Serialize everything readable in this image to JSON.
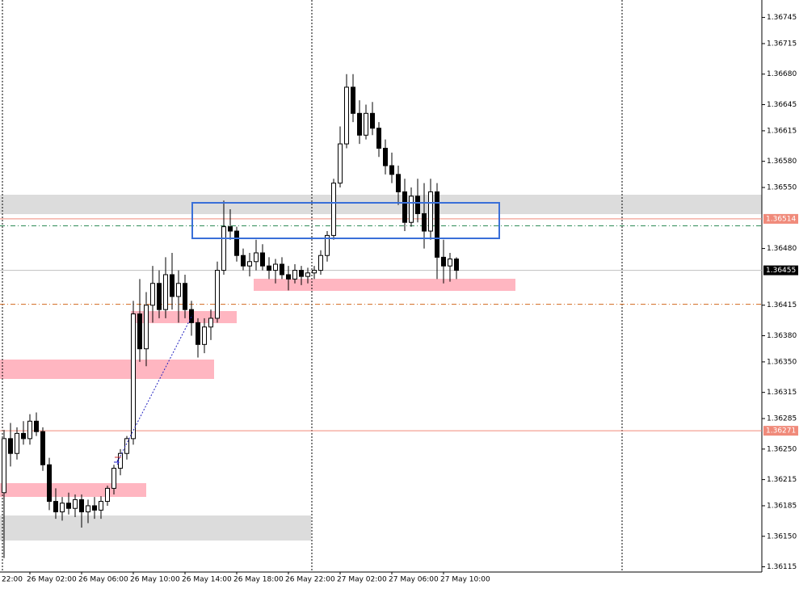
{
  "chart_data": {
    "type": "candlestick",
    "ylim": [
      1.36109,
      1.36765
    ],
    "yticks": [
      1.36745,
      1.36715,
      {
        "value": 1.3668,
        "label": "1.36680"
      },
      1.36645,
      1.36615,
      {
        "value": 1.3658,
        "label": "1.36580"
      },
      {
        "value": 1.3655,
        "label": "1.36550"
      },
      {
        "value": 1.3648,
        "label": "1.36480"
      },
      1.36415,
      {
        "value": 1.3638,
        "label": "1.36380"
      },
      {
        "value": 1.3635,
        "label": "1.36350"
      },
      1.36315,
      1.36285,
      {
        "value": 1.3625,
        "label": "1.36250"
      },
      1.36215,
      1.36185,
      {
        "value": 1.3615,
        "label": "1.36150"
      },
      1.36115
    ],
    "x_cut_label": "22:00",
    "categories": [
      null,
      null,
      null,
      null,
      "26 May 02:00",
      null,
      null,
      null,
      null,
      null,
      null,
      null,
      "26 May 06:00",
      null,
      null,
      null,
      null,
      null,
      null,
      null,
      "26 May 10:00",
      null,
      null,
      null,
      null,
      null,
      null,
      null,
      "26 May 14:00",
      null,
      null,
      null,
      null,
      null,
      null,
      null,
      "26 May 18:00",
      null,
      null,
      null,
      null,
      null,
      null,
      null,
      "26 May 22:00",
      null,
      null,
      null,
      null,
      null,
      null,
      null,
      "27 May 02:00",
      null,
      null,
      null,
      null,
      null,
      null,
      null,
      "27 May 06:00",
      null,
      null,
      null,
      null,
      null,
      null,
      null,
      "27 May 10:00",
      null,
      null
    ],
    "ohlc": [
      [
        1.362,
        1.36272,
        1.36125,
        1.36262
      ],
      [
        1.36262,
        1.3628,
        1.3623,
        1.36245
      ],
      [
        1.36245,
        1.36275,
        1.36238,
        1.36268
      ],
      [
        1.36268,
        1.36282,
        1.36255,
        1.36262
      ],
      [
        1.36262,
        1.3629,
        1.36255,
        1.36282
      ],
      [
        1.36282,
        1.36292,
        1.36265,
        1.3627
      ],
      [
        1.3627,
        1.36275,
        1.36225,
        1.36232
      ],
      [
        1.36232,
        1.3624,
        1.3618,
        1.3619
      ],
      [
        1.3619,
        1.36205,
        1.3617,
        1.36178
      ],
      [
        1.36178,
        1.36195,
        1.36168,
        1.36188
      ],
      [
        1.36188,
        1.362,
        1.36175,
        1.36182
      ],
      [
        1.36182,
        1.36198,
        1.36172,
        1.36192
      ],
      [
        1.36192,
        1.36198,
        1.3616,
        1.36178
      ],
      [
        1.36178,
        1.36192,
        1.36165,
        1.36185
      ],
      [
        1.36185,
        1.36195,
        1.3617,
        1.3618
      ],
      [
        1.3618,
        1.36196,
        1.3617,
        1.3619
      ],
      [
        1.3619,
        1.36208,
        1.36185,
        1.36205
      ],
      [
        1.36205,
        1.36232,
        1.36198,
        1.36228
      ],
      [
        1.36228,
        1.3625,
        1.3622,
        1.36245
      ],
      [
        1.36245,
        1.36265,
        1.36238,
        1.36262
      ],
      [
        1.36262,
        1.3642,
        1.36255,
        1.36405
      ],
      [
        1.36405,
        1.36445,
        1.3635,
        1.36365
      ],
      [
        1.36365,
        1.3643,
        1.36345,
        1.36415
      ],
      [
        1.36415,
        1.3646,
        1.36395,
        1.3644
      ],
      [
        1.3644,
        1.36455,
        1.364,
        1.3641
      ],
      [
        1.3641,
        1.3647,
        1.364,
        1.3645
      ],
      [
        1.3645,
        1.36475,
        1.3641,
        1.36425
      ],
      [
        1.36425,
        1.36455,
        1.36395,
        1.3644
      ],
      [
        1.3644,
        1.3645,
        1.364,
        1.3641
      ],
      [
        1.3641,
        1.3642,
        1.3638,
        1.36395
      ],
      [
        1.36395,
        1.364,
        1.36355,
        1.3637
      ],
      [
        1.3637,
        1.364,
        1.3636,
        1.3639
      ],
      [
        1.3639,
        1.3641,
        1.36375,
        1.364
      ],
      [
        1.364,
        1.36465,
        1.36395,
        1.36455
      ],
      [
        1.36455,
        1.36535,
        1.3645,
        1.36505
      ],
      [
        1.36505,
        1.36525,
        1.3649,
        1.365
      ],
      [
        1.365,
        1.36505,
        1.36465,
        1.36472
      ],
      [
        1.36472,
        1.3648,
        1.36455,
        1.3646
      ],
      [
        1.3646,
        1.36475,
        1.36448,
        1.36465
      ],
      [
        1.36465,
        1.3649,
        1.36455,
        1.36475
      ],
      [
        1.36475,
        1.36485,
        1.36455,
        1.3646
      ],
      [
        1.3646,
        1.3647,
        1.36445,
        1.36455
      ],
      [
        1.36455,
        1.36468,
        1.3644,
        1.36462
      ],
      [
        1.36462,
        1.3647,
        1.36445,
        1.3645
      ],
      [
        1.3645,
        1.3646,
        1.36432,
        1.36445
      ],
      [
        1.36445,
        1.36462,
        1.3644,
        1.36455
      ],
      [
        1.36455,
        1.3646,
        1.36438,
        1.36448
      ],
      [
        1.36448,
        1.36458,
        1.3644,
        1.36452
      ],
      [
        1.36452,
        1.3646,
        1.36445,
        1.36455
      ],
      [
        1.36455,
        1.36478,
        1.3645,
        1.36472
      ],
      [
        1.36472,
        1.365,
        1.36465,
        1.36495
      ],
      [
        1.36495,
        1.3656,
        1.3649,
        1.36555
      ],
      [
        1.36555,
        1.3662,
        1.3655,
        1.366
      ],
      [
        1.366,
        1.3668,
        1.36595,
        1.36665
      ],
      [
        1.36665,
        1.3668,
        1.36625,
        1.36635
      ],
      [
        1.36635,
        1.3665,
        1.366,
        1.3661
      ],
      [
        1.3661,
        1.36645,
        1.36605,
        1.36635
      ],
      [
        1.36635,
        1.36648,
        1.3661,
        1.36618
      ],
      [
        1.36618,
        1.36625,
        1.36585,
        1.36595
      ],
      [
        1.36595,
        1.36605,
        1.36565,
        1.36575
      ],
      [
        1.36575,
        1.3659,
        1.36555,
        1.36565
      ],
      [
        1.36565,
        1.36575,
        1.3653,
        1.36545
      ],
      [
        1.36545,
        1.3656,
        1.365,
        1.3651
      ],
      [
        1.3651,
        1.3655,
        1.36505,
        1.3654
      ],
      [
        1.3654,
        1.3656,
        1.3651,
        1.3652
      ],
      [
        1.3652,
        1.36555,
        1.3648,
        1.365
      ],
      [
        1.365,
        1.3656,
        1.3649,
        1.36545
      ],
      [
        1.36545,
        1.36555,
        1.36445,
        1.3647
      ],
      [
        1.3647,
        1.3649,
        1.3644,
        1.3646
      ],
      [
        1.3646,
        1.36475,
        1.36442,
        1.36468
      ],
      [
        1.36468,
        1.3647,
        1.36445,
        1.36455
      ]
    ],
    "up_color": "#ffffff",
    "down_color": "#000000",
    "outline_color": "#000000",
    "levels": [
      {
        "value": 1.36514,
        "color": "#f08a7a",
        "dash": "solid",
        "tag": "#f08a7a"
      },
      {
        "value": 1.36455,
        "color": "#c0c0c0",
        "dash": "solid",
        "tag": "#000000"
      },
      {
        "value": 1.36271,
        "color": "#f08a7a",
        "dash": "solid",
        "tag": "#f08a7a"
      },
      {
        "value": 1.36506,
        "color": "#2e8b57",
        "dash": "dashdot"
      },
      {
        "value": 1.36416,
        "color": "#d2691e",
        "dash": "dashdot"
      }
    ]
  }
}
